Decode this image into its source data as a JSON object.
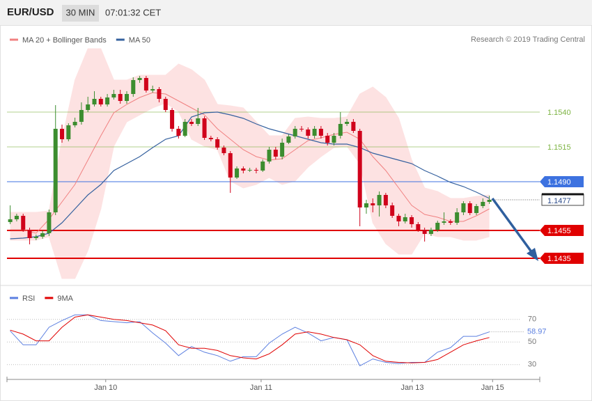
{
  "header": {
    "symbol": "EUR/USD",
    "timeframe": "30 MIN",
    "time": "07:01:32 CET"
  },
  "chart_data": [
    {
      "type": "candlestick",
      "credit": "Research © 2019 Trading Central",
      "xlim": [
        -1,
        164
      ],
      "ylim": [
        1.14155,
        1.16025
      ],
      "up_color": "#3c8d2f",
      "down_color": "#d0021b",
      "x": [
        0,
        2,
        4,
        6,
        8,
        10,
        12,
        14,
        16,
        18,
        20,
        22,
        24,
        26,
        28,
        30,
        32,
        34,
        36,
        38,
        40,
        42,
        44,
        46,
        48,
        50,
        52,
        54,
        56,
        58,
        60,
        62,
        64,
        66,
        68,
        70,
        72,
        74,
        76,
        78,
        80,
        82,
        84,
        86,
        88,
        90,
        92,
        94,
        96,
        98,
        100,
        102,
        104,
        106,
        108,
        110,
        112,
        114,
        116,
        118,
        120,
        122,
        124,
        126,
        128,
        130,
        132,
        134,
        136,
        138,
        140,
        142,
        144,
        146,
        148
      ],
      "open": [
        1.1461,
        1.1463,
        1.14655,
        1.14555,
        1.14495,
        1.14505,
        1.1453,
        1.1468,
        1.1528,
        1.15205,
        1.15305,
        1.1533,
        1.15415,
        1.15455,
        1.15495,
        1.15455,
        1.15505,
        1.1553,
        1.1548,
        1.1553,
        1.1563,
        1.15645,
        1.15555,
        1.15565,
        1.15495,
        1.15415,
        1.1528,
        1.1523,
        1.1533,
        1.15315,
        1.15355,
        1.15215,
        1.15205,
        1.15145,
        1.15105,
        1.1493,
        1.14995,
        1.1498,
        1.14985,
        1.1498,
        1.15045,
        1.1513,
        1.1508,
        1.1518,
        1.15225,
        1.1528,
        1.15275,
        1.1523,
        1.1528,
        1.1523,
        1.1518,
        1.1523,
        1.15315,
        1.1533,
        1.15265,
        1.14715,
        1.14745,
        1.1473,
        1.14805,
        1.1473,
        1.14655,
        1.14615,
        1.14645,
        1.14595,
        1.14555,
        1.14525,
        1.14555,
        1.14605,
        1.14615,
        1.14605,
        1.1468,
        1.14745,
        1.14675,
        1.14725,
        1.14755
      ],
      "high": [
        1.1473,
        1.1467,
        1.1467,
        1.1457,
        1.1452,
        1.1455,
        1.147,
        1.1545,
        1.1531,
        1.1532,
        1.1536,
        1.1547,
        1.1551,
        1.1555,
        1.1551,
        1.1553,
        1.1556,
        1.1556,
        1.1555,
        1.1565,
        1.1566,
        1.1566,
        1.1559,
        1.1558,
        1.1551,
        1.1543,
        1.153,
        1.1535,
        1.1535,
        1.1543,
        1.1537,
        1.1523,
        1.1522,
        1.1516,
        1.1512,
        1.1501,
        1.1501,
        1.15,
        1.15,
        1.1506,
        1.1515,
        1.1515,
        1.1521,
        1.1524,
        1.153,
        1.153,
        1.1529,
        1.153,
        1.153,
        1.1525,
        1.1525,
        1.154,
        1.1535,
        1.1535,
        1.1528,
        1.1477,
        1.1478,
        1.1483,
        1.1482,
        1.1475,
        1.1467,
        1.1467,
        1.1466,
        1.1461,
        1.1457,
        1.1457,
        1.1462,
        1.1468,
        1.1463,
        1.1471,
        1.1476,
        1.1476,
        1.1474,
        1.1478,
        1.148
      ],
      "low": [
        1.14595,
        1.14615,
        1.1454,
        1.1445,
        1.1448,
        1.1449,
        1.1451,
        1.1466,
        1.1518,
        1.1519,
        1.1529,
        1.1531,
        1.154,
        1.1544,
        1.1544,
        1.1544,
        1.1549,
        1.1546,
        1.1546,
        1.1551,
        1.1561,
        1.1554,
        1.1554,
        1.1547,
        1.154,
        1.1526,
        1.1521,
        1.1522,
        1.153,
        1.153,
        1.152,
        1.1519,
        1.1513,
        1.1509,
        1.1482,
        1.1492,
        1.1496,
        1.1497,
        1.1496,
        1.1497,
        1.1503,
        1.1506,
        1.1506,
        1.1517,
        1.1521,
        1.1526,
        1.1521,
        1.1521,
        1.1521,
        1.1516,
        1.1516,
        1.1521,
        1.153,
        1.1525,
        1.1458,
        1.1467,
        1.1468,
        1.1465,
        1.1471,
        1.1464,
        1.1458,
        1.146,
        1.1457,
        1.1454,
        1.1447,
        1.1451,
        1.1454,
        1.1459,
        1.1459,
        1.1459,
        1.1466,
        1.1466,
        1.1466,
        1.1471,
        1.1474
      ],
      "close": [
        1.1463,
        1.14655,
        1.14555,
        1.14495,
        1.14505,
        1.1453,
        1.1468,
        1.1528,
        1.15205,
        1.15305,
        1.1533,
        1.15415,
        1.15455,
        1.15495,
        1.15455,
        1.15505,
        1.1553,
        1.1548,
        1.1553,
        1.1563,
        1.15645,
        1.15555,
        1.15565,
        1.15495,
        1.15415,
        1.1528,
        1.1523,
        1.1533,
        1.15315,
        1.15355,
        1.15215,
        1.15205,
        1.15145,
        1.15105,
        1.1493,
        1.14995,
        1.1498,
        1.14985,
        1.1498,
        1.15045,
        1.1513,
        1.1508,
        1.1518,
        1.15225,
        1.1528,
        1.15275,
        1.1523,
        1.1528,
        1.1523,
        1.1518,
        1.1523,
        1.15315,
        1.1533,
        1.15265,
        1.14715,
        1.14745,
        1.1473,
        1.14805,
        1.1473,
        1.14655,
        1.14615,
        1.14645,
        1.14595,
        1.14555,
        1.14525,
        1.14555,
        1.14605,
        1.14615,
        1.14605,
        1.1468,
        1.14745,
        1.14675,
        1.14725,
        1.14755,
        1.1477
      ],
      "series": [
        {
          "name": "MA 20 + Bollinger Bands",
          "color": "#f08080",
          "band_color": "#fde2e2",
          "x": [
            0,
            4,
            8,
            12,
            16,
            20,
            24,
            28,
            32,
            36,
            40,
            44,
            48,
            52,
            56,
            60,
            64,
            68,
            72,
            76,
            80,
            84,
            88,
            92,
            96,
            100,
            104,
            108,
            112,
            116,
            120,
            124,
            128,
            132,
            136,
            140,
            144,
            148
          ],
          "values": [
            1.14555,
            1.14555,
            1.1453,
            1.1463,
            1.14755,
            1.1488,
            1.15055,
            1.1523,
            1.15395,
            1.15455,
            1.15505,
            1.1554,
            1.1553,
            1.1548,
            1.1543,
            1.1538,
            1.1528,
            1.15205,
            1.1513,
            1.1508,
            1.15055,
            1.15065,
            1.1513,
            1.15195,
            1.15215,
            1.1524,
            1.15255,
            1.15205,
            1.1508,
            1.1498,
            1.14855,
            1.1473,
            1.14665,
            1.14645,
            1.14615,
            1.14615,
            1.14655,
            1.14705
          ],
          "upper": [
            1.1468,
            1.1468,
            1.1468,
            1.1469,
            1.15205,
            1.1563,
            1.15855,
            1.15855,
            1.1563,
            1.1563,
            1.15665,
            1.15665,
            1.15665,
            1.15745,
            1.15705,
            1.1563,
            1.15455,
            1.15445,
            1.1543,
            1.1533,
            1.1523,
            1.1523,
            1.15355,
            1.15365,
            1.15355,
            1.15355,
            1.15365,
            1.1553,
            1.1558,
            1.15505,
            1.15355,
            1.15055,
            1.14855,
            1.1483,
            1.1478,
            1.1478,
            1.14795,
            1.14805
          ],
          "lower": [
            1.1448,
            1.1448,
            1.1448,
            1.14505,
            1.14205,
            1.14205,
            1.14405,
            1.14705,
            1.15155,
            1.1533,
            1.1538,
            1.1543,
            1.15465,
            1.15405,
            1.15205,
            1.15155,
            1.1513,
            1.14905,
            1.14855,
            1.1488,
            1.1493,
            1.1488,
            1.14905,
            1.15005,
            1.1508,
            1.15145,
            1.15155,
            1.1503,
            1.14605,
            1.14455,
            1.1438,
            1.1438,
            1.1453,
            1.14505,
            1.14505,
            1.1448,
            1.1448,
            1.14505
          ]
        },
        {
          "name": "MA 50",
          "color": "#34609e",
          "x": [
            0,
            4,
            8,
            12,
            16,
            20,
            24,
            28,
            32,
            36,
            40,
            44,
            48,
            52,
            56,
            60,
            64,
            68,
            72,
            76,
            80,
            84,
            88,
            92,
            96,
            100,
            104,
            108,
            112,
            116,
            120,
            124,
            128,
            132,
            136,
            140,
            144,
            148
          ],
          "values": [
            1.1449,
            1.14495,
            1.14505,
            1.1453,
            1.14605,
            1.14705,
            1.14805,
            1.1488,
            1.1498,
            1.1503,
            1.1508,
            1.15145,
            1.15205,
            1.1523,
            1.15365,
            1.15395,
            1.154,
            1.1538,
            1.15355,
            1.15315,
            1.1528,
            1.15255,
            1.1523,
            1.15205,
            1.1518,
            1.1517,
            1.1517,
            1.15145,
            1.15105,
            1.1508,
            1.15055,
            1.1503,
            1.1498,
            1.1494,
            1.14895,
            1.14865,
            1.14825,
            1.1478
          ]
        }
      ],
      "levels": [
        {
          "value": 1.154,
          "label": "1.1540",
          "color": "#7cb342",
          "boxed": false
        },
        {
          "value": 1.1515,
          "color": "#7cb342",
          "boxed": false
        },
        {
          "value": 1.149,
          "label": "1.1490",
          "color": "#3d72e0",
          "boxed": true
        },
        {
          "value": 1.1455,
          "color": "#e00000",
          "boxed": true
        },
        {
          "value": 1.1435,
          "color": "#e00000",
          "boxed": true
        }
      ]
    },
    {
      "type": "line",
      "xlim": [
        -1,
        164
      ],
      "ylim": [
        20,
        100
      ],
      "yticks": [
        30,
        50,
        70
      ],
      "grid": true,
      "xticks": [
        {
          "value": 29.5,
          "label": "Jan 10"
        },
        {
          "value": 77.5,
          "label": "Jan 11"
        },
        {
          "value": 124.2,
          "label": "Jan 13"
        },
        {
          "value": 149,
          "label": "Jan 15"
        }
      ],
      "x": [
        0,
        4,
        8,
        12,
        16,
        20,
        24,
        28,
        32,
        36,
        40,
        44,
        48,
        52,
        56,
        60,
        64,
        68,
        72,
        76,
        80,
        84,
        88,
        92,
        96,
        100,
        104,
        108,
        112,
        116,
        120,
        124,
        128,
        132,
        136,
        140,
        144,
        148
      ],
      "series": [
        {
          "name": "RSI",
          "color": "#5b7fe0",
          "values": [
            59.8,
            47.5,
            47.5,
            63,
            69,
            74,
            74,
            69,
            68,
            67,
            68,
            58,
            49,
            38,
            46,
            41,
            38,
            33,
            37,
            37,
            49,
            57,
            63,
            58,
            51,
            54,
            52,
            29,
            35,
            32,
            31,
            32,
            32,
            41,
            45,
            55,
            55,
            58.97
          ]
        },
        {
          "name": "9MA",
          "color": "#e00000",
          "values": [
            60.5,
            57,
            51,
            51,
            63,
            72,
            74,
            72,
            70,
            69,
            67,
            65,
            60,
            47.5,
            44.5,
            44.5,
            42.5,
            38,
            36,
            35,
            39.5,
            47.5,
            57,
            59,
            57,
            54,
            52,
            47.5,
            38,
            33,
            32,
            31.5,
            32,
            34.5,
            41,
            47.5,
            51,
            54
          ]
        }
      ]
    }
  ]
}
